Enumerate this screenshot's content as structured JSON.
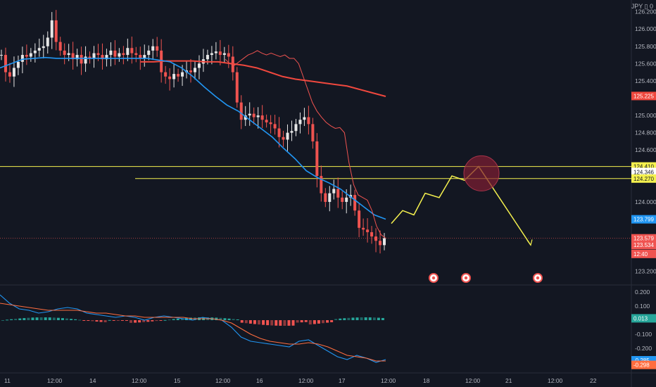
{
  "chart_data": {
    "type": "candlestick",
    "symbol_currency": "JPY",
    "colors": {
      "background": "#131722",
      "up": "#e6e6e6",
      "down": "#ef5350",
      "ma_fast": "#ef5350",
      "ma_mid": "#2196f3",
      "ma_slow": "#f0483e",
      "level_line": "#f5f14e",
      "projection": "#f5f14e",
      "macd": "#2196f3",
      "signal": "#ff6d3f",
      "hist_pos": "#26a69a",
      "hist_neg": "#ef5350"
    },
    "price_axis": {
      "ticks": [
        "126.200",
        "126.000",
        "125.800",
        "125.600",
        "125.400",
        "125.000",
        "124.800",
        "124.600",
        "124.000",
        "123.200"
      ],
      "range": [
        123.08,
        126.27
      ]
    },
    "time_axis": {
      "labels": [
        "11",
        "12:00",
        "14",
        "12:00",
        "15",
        "12:00",
        "16",
        "12:00",
        "17",
        "12:00",
        "18",
        "12:00",
        "21",
        "12:00",
        "22"
      ]
    },
    "price_tags": [
      {
        "label": "125.225",
        "value": 125.225,
        "color": "#f0483e"
      },
      {
        "label": "124.410",
        "value": 124.41,
        "color": "#f5f14e"
      },
      {
        "label": "124.346",
        "value": 124.346,
        "color": "#ffffff"
      },
      {
        "label": "124.270",
        "value": 124.27,
        "color": "#f5f14e"
      },
      {
        "label": "123.799",
        "value": 123.799,
        "color": "#2196f3"
      },
      {
        "label": "123.579",
        "value": 123.579,
        "color": "#ef5350"
      },
      {
        "label": "123.534",
        "value": 123.534,
        "color": "#ef5350"
      },
      {
        "label": "12:40",
        "value": 123.48,
        "color": "#ef5350"
      }
    ],
    "levels": [
      124.41,
      124.27
    ],
    "candles_close_path": [
      125.7,
      125.5,
      125.45,
      125.55,
      125.62,
      125.7,
      125.68,
      125.72,
      125.75,
      125.78,
      125.8,
      125.9,
      126.1,
      125.85,
      125.75,
      125.7,
      125.72,
      125.65,
      125.7,
      125.6,
      125.68,
      125.66,
      125.72,
      125.7,
      125.65,
      125.7,
      125.75,
      125.68,
      125.72,
      125.7,
      125.78,
      125.72,
      125.7,
      125.66,
      125.7,
      125.75,
      125.8,
      125.75,
      125.5,
      125.45,
      125.42,
      125.48,
      125.45,
      125.5,
      125.52,
      125.5,
      125.55,
      125.6,
      125.65,
      125.7,
      125.72,
      125.74,
      125.7,
      125.72,
      125.68,
      125.5,
      125.15,
      124.95,
      125.0,
      125.02,
      124.98,
      125.0,
      124.95,
      124.92,
      124.9,
      124.85,
      124.75,
      124.72,
      124.8,
      124.82,
      124.9,
      124.95,
      124.98,
      124.9,
      124.7,
      124.3,
      124.1,
      124.0,
      124.1,
      124.15,
      124.05,
      124.0,
      124.05,
      124.08,
      123.9,
      123.7,
      123.68,
      123.65,
      123.6,
      123.55,
      123.5,
      123.58
    ],
    "ma_fast": [
      125.65,
      125.6,
      125.58,
      125.62,
      125.66,
      125.7,
      125.72,
      125.75,
      125.72,
      125.7,
      125.72,
      125.7,
      125.68,
      125.7,
      125.66,
      125.66,
      125.6,
      125.45,
      125.3,
      125.15,
      125.05,
      124.98,
      124.92,
      124.88,
      124.85,
      124.86,
      124.8,
      124.45,
      124.2,
      124.08,
      124.05,
      124.02,
      123.9,
      123.72,
      123.62,
      123.58
    ],
    "ma_mid": [
      125.55,
      125.6,
      125.65,
      125.66,
      125.67,
      125.66,
      125.66,
      125.66,
      125.66,
      125.66,
      125.66,
      125.66,
      125.66,
      125.66,
      125.64,
      125.62,
      125.55,
      125.45,
      125.33,
      125.22,
      125.12,
      125.05,
      124.95,
      124.85,
      124.75,
      124.62,
      124.5,
      124.36,
      124.28,
      124.22,
      124.15,
      124.05,
      123.95,
      123.85,
      123.8
    ],
    "ma_slow": [
      125.62,
      125.62,
      125.63,
      125.63,
      125.63,
      125.62,
      125.62,
      125.6,
      125.58,
      125.55,
      125.5,
      125.45,
      125.42,
      125.4,
      125.38,
      125.36,
      125.34,
      125.3,
      125.26,
      125.22
    ],
    "projection_path": [
      123.75,
      123.9,
      123.85,
      124.1,
      124.05,
      124.3,
      124.25,
      124.41,
      123.5
    ]
  }
}
